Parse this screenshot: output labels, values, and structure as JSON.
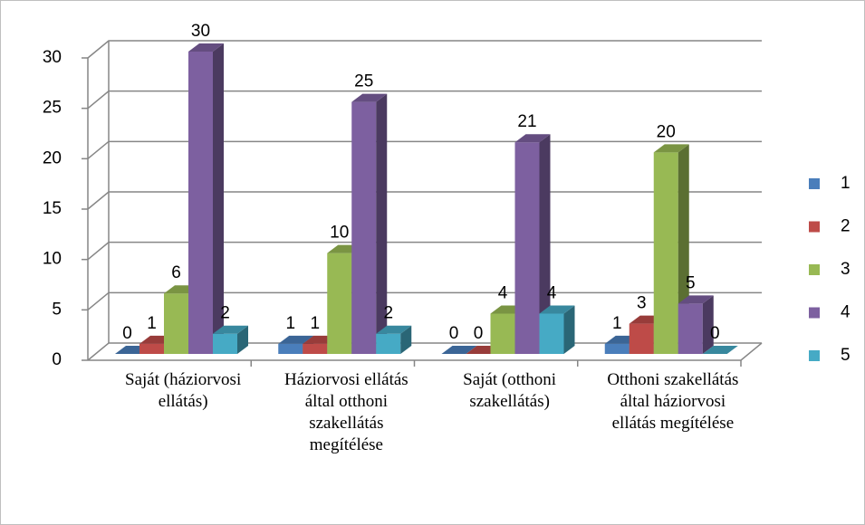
{
  "chart_data": {
    "type": "bar3d",
    "categories": [
      "Saját (háziorvosi ellátás)",
      "Háziorvosi ellátás által otthoni szakellátás megítélése",
      "Saját (otthoni szakellátás)",
      "Otthoni szakellátás által háziorvosi ellátás megítélése"
    ],
    "series": [
      {
        "name": "1",
        "color": "#4a7ebb",
        "values": [
          0,
          1,
          0,
          1
        ]
      },
      {
        "name": "2",
        "color": "#be4b48",
        "values": [
          1,
          1,
          0,
          3
        ]
      },
      {
        "name": "3",
        "color": "#98b954",
        "values": [
          6,
          10,
          4,
          20
        ]
      },
      {
        "name": "4",
        "color": "#7d60a0",
        "values": [
          30,
          25,
          21,
          5
        ]
      },
      {
        "name": "5",
        "color": "#46aac5",
        "values": [
          2,
          2,
          4,
          0
        ]
      }
    ],
    "ylim": [
      0,
      30
    ],
    "yticks": [
      0,
      5,
      10,
      15,
      20,
      25,
      30
    ],
    "grid": true,
    "legend": "right"
  }
}
